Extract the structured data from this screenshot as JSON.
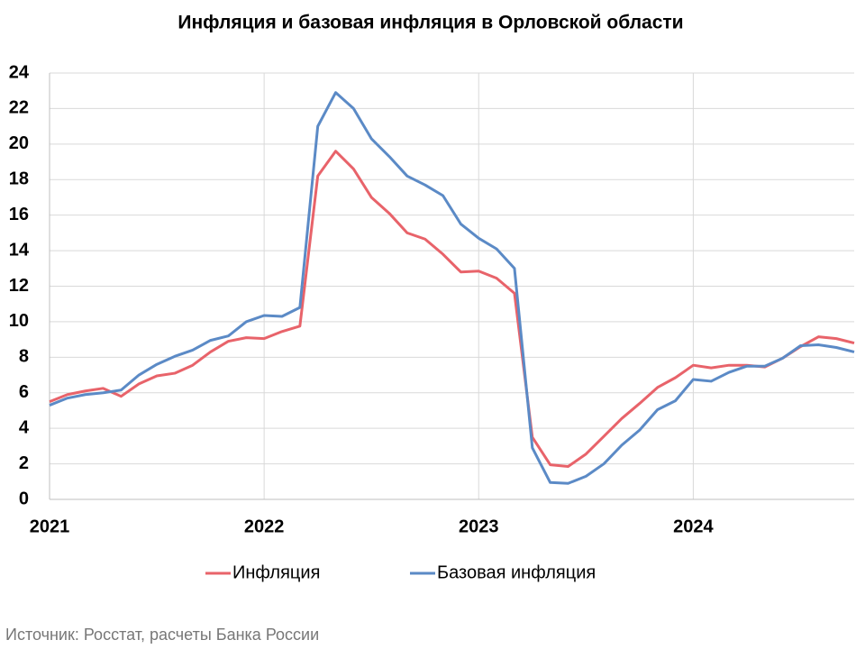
{
  "chart_data": {
    "type": "line",
    "title": "Инфляция и базовая инфляция в Орловской области",
    "source": "Источник: Росстат, расчеты Банка России",
    "categories": [
      "2021",
      null,
      null,
      null,
      null,
      null,
      null,
      null,
      null,
      null,
      null,
      null,
      "2022",
      null,
      null,
      null,
      null,
      null,
      null,
      null,
      null,
      null,
      null,
      null,
      "2023",
      null,
      null,
      null,
      null,
      null,
      null,
      null,
      null,
      null,
      null,
      null,
      "2024",
      null,
      null,
      null,
      null,
      null,
      null,
      null,
      null,
      null
    ],
    "series": [
      {
        "name": "Инфляция",
        "color": "#e8636a",
        "values": [
          5.5,
          5.9,
          6.1,
          6.25,
          5.8,
          6.5,
          6.95,
          7.1,
          7.55,
          8.3,
          8.9,
          9.1,
          9.05,
          9.45,
          9.75,
          18.2,
          19.6,
          18.6,
          17.0,
          16.1,
          15.0,
          14.65,
          13.8,
          12.8,
          12.85,
          12.45,
          11.6,
          3.5,
          1.95,
          1.85,
          2.55,
          3.55,
          4.55,
          5.4,
          6.3,
          6.85,
          7.55,
          7.4,
          7.55,
          7.55,
          7.45,
          7.95,
          8.6,
          9.15,
          9.05,
          8.8
        ]
      },
      {
        "name": "Базовая инфляция",
        "color": "#5b8ac6",
        "values": [
          5.3,
          5.7,
          5.9,
          6.0,
          6.15,
          7.0,
          7.6,
          8.05,
          8.4,
          8.95,
          9.2,
          10.0,
          10.35,
          10.3,
          10.8,
          21.0,
          22.9,
          22.0,
          20.3,
          19.3,
          18.2,
          17.7,
          17.1,
          15.5,
          14.7,
          14.1,
          13.0,
          2.9,
          0.95,
          0.9,
          1.3,
          2.0,
          3.05,
          3.9,
          5.05,
          5.55,
          6.75,
          6.65,
          7.15,
          7.5,
          7.5,
          7.95,
          8.65,
          8.7,
          8.55,
          8.3
        ]
      }
    ],
    "ylim": [
      0,
      24
    ],
    "yticks": [
      0,
      2,
      4,
      6,
      8,
      10,
      12,
      14,
      16,
      18,
      20,
      22,
      24
    ],
    "grid": true,
    "legend": "bottom"
  }
}
